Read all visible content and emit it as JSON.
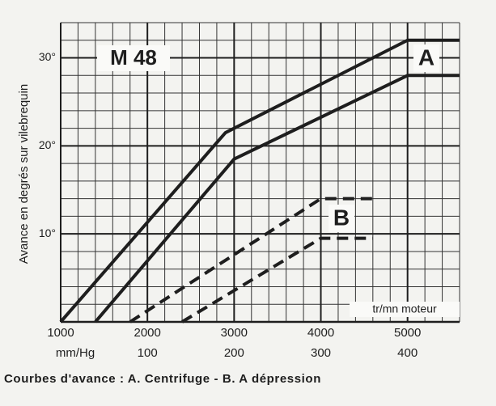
{
  "chart_data": {
    "type": "line",
    "title": "M 48",
    "ylabel": "Avance en degrés sur vilebrequin",
    "xlabel": "tr/mn moteur",
    "caption": "Courbes d'avance : A. Centrifuge - B. A dépression",
    "xlim": [
      1000,
      5600
    ],
    "xticks": [
      1000,
      2000,
      3000,
      4000,
      5000
    ],
    "ylim": [
      0,
      34
    ],
    "yticks": [
      {
        "value": 10,
        "label": "10°"
      },
      {
        "value": 20,
        "label": "20°"
      },
      {
        "value": 30,
        "label": "30°"
      }
    ],
    "x2label": "mm/Hg",
    "x2lim": [
      0,
      460
    ],
    "x2ticks": [
      100,
      200,
      300,
      400
    ],
    "grid": true,
    "series": [
      {
        "name": "A",
        "color": "#1e1e1e",
        "dashed": false,
        "lines": [
          {
            "x": [
              1000,
              2900,
              5000,
              5600
            ],
            "values": [
              0,
              21.5,
              32,
              32
            ]
          },
          {
            "x": [
              1400,
              3000,
              5000,
              5600
            ],
            "values": [
              0,
              18.5,
              28,
              28
            ]
          }
        ]
      },
      {
        "name": "B",
        "color": "#1e1e1e",
        "dashed": true,
        "lines": [
          {
            "x": [
              1800,
              4000,
              4600
            ],
            "values": [
              0,
              14,
              14
            ]
          },
          {
            "x": [
              2400,
              4000,
              4600
            ],
            "values": [
              0,
              9.5,
              9.5
            ]
          }
        ]
      }
    ]
  }
}
